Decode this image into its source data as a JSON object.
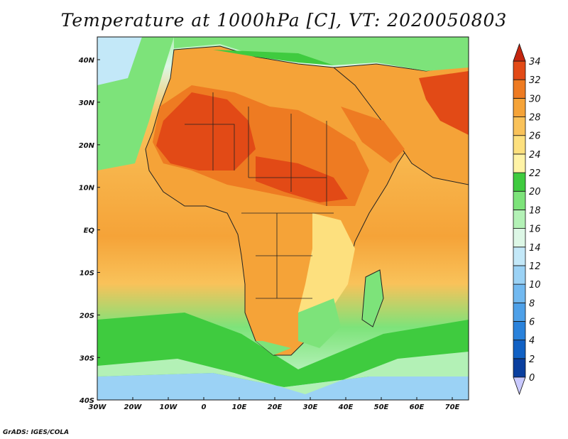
{
  "title": "Temperature at 1000hPa [C], VT: 2020050803",
  "credit": "GrADS: IGES/COLA",
  "lat_labels": [
    "40N",
    "30N",
    "20N",
    "10N",
    "EQ",
    "10S",
    "20S",
    "30S",
    "40S"
  ],
  "lon_labels": [
    "30W",
    "20W",
    "10W",
    "0",
    "10E",
    "20E",
    "30E",
    "40E",
    "50E",
    "60E",
    "70E"
  ],
  "colorbar": {
    "levels": [
      "0",
      "2",
      "4",
      "6",
      "8",
      "10",
      "12",
      "14",
      "16",
      "18",
      "20",
      "22",
      "24",
      "26",
      "28",
      "30",
      "32",
      "34"
    ],
    "colors": [
      "#0c1d6e",
      "#0a3f9f",
      "#1161c4",
      "#2a82db",
      "#4ea0e8",
      "#72b9f0",
      "#9bd2f5",
      "#c3e8f8",
      "#ddf7e6",
      "#b3f1b6",
      "#7de37a",
      "#3fcb3f",
      "#fff3a6",
      "#fde07e",
      "#f9c25a",
      "#f5a338",
      "#ee7b22",
      "#e24a16",
      "#c4260f"
    ]
  },
  "regions": [
    {
      "name": "south-ocean",
      "color": "#7de37a"
    },
    {
      "name": "ocean-mid",
      "color": "#f9c25a"
    },
    {
      "name": "sahara",
      "color": "#e24a16"
    },
    {
      "name": "mediterranean",
      "color": "#7de37a"
    }
  ]
}
